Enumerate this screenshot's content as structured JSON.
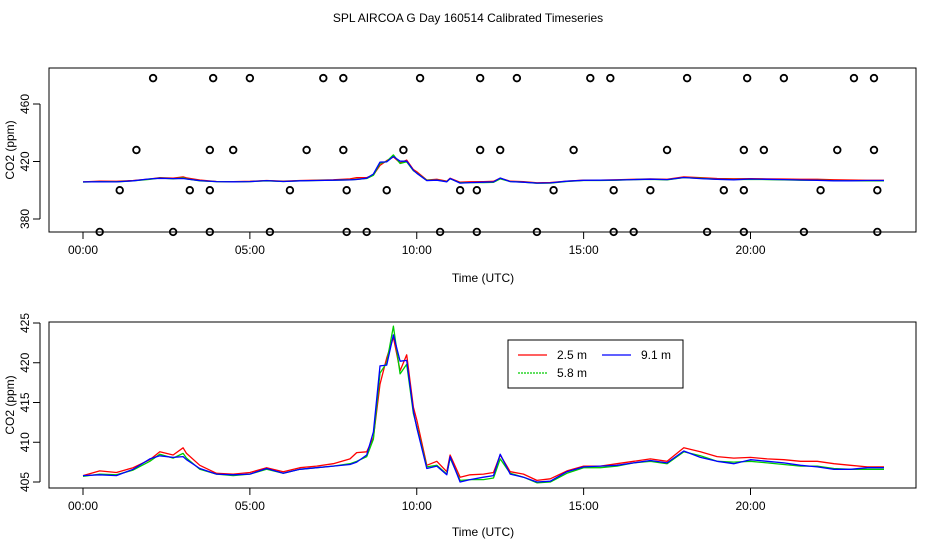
{
  "title": "SPL AIRCOA G  Day 160514  Calibrated Timeseries",
  "chart_data": [
    {
      "type": "scatter+line",
      "xlabel": "Time (UTC)",
      "ylabel": "CO2 (ppm)",
      "xlim": [
        0,
        24
      ],
      "ylim": [
        365,
        482
      ],
      "x_ticks": [
        0,
        5,
        10,
        15,
        20
      ],
      "x_tick_labels": [
        "00:00",
        "05:00",
        "10:00",
        "15:00",
        "20:00"
      ],
      "y_ticks": [
        380,
        420,
        460
      ],
      "y_tick_labels": [
        "380",
        "420",
        "460"
      ],
      "markers": {
        "level_478": [
          2.1,
          3.9,
          5.0,
          7.2,
          7.8,
          10.1,
          11.9,
          13.0,
          15.2,
          15.8,
          18.1,
          19.9,
          21.0,
          23.1,
          23.7
        ],
        "level_428": [
          1.6,
          3.8,
          4.5,
          6.7,
          7.8,
          9.6,
          11.9,
          12.5,
          14.7,
          17.5,
          19.8,
          20.4,
          22.6,
          23.7
        ],
        "level_400": [
          1.1,
          3.2,
          3.8,
          6.2,
          7.9,
          9.1,
          11.3,
          11.8,
          14.1,
          15.9,
          17.0,
          19.2,
          19.8,
          22.1,
          23.8
        ],
        "level_371": [
          0.5,
          2.7,
          3.8,
          5.6,
          7.9,
          8.5,
          10.7,
          11.8,
          13.6,
          15.9,
          16.5,
          18.7,
          19.8,
          21.6,
          23.8
        ]
      },
      "series": [
        {
          "name": "2.5 m",
          "color": "#ff0000"
        },
        {
          "name": "5.8 m",
          "color": "#00cc00"
        },
        {
          "name": "9.1 m",
          "color": "#0000ff"
        }
      ]
    },
    {
      "type": "line",
      "xlabel": "Time (UTC)",
      "ylabel": "CO2 (ppm)",
      "xlim": [
        0,
        24
      ],
      "ylim": [
        404.3,
        425
      ],
      "x_ticks": [
        0,
        5,
        10,
        15,
        20
      ],
      "x_tick_labels": [
        "00:00",
        "05:00",
        "10:00",
        "15:00",
        "20:00"
      ],
      "y_ticks": [
        405,
        410,
        415,
        420,
        425
      ],
      "y_tick_labels": [
        "405",
        "410",
        "415",
        "420",
        "425"
      ],
      "legend_position": "top-center",
      "series": [
        {
          "name": "2.5 m",
          "color": "#ff0000",
          "x": [
            0.0,
            0.5,
            1.0,
            1.5,
            2.0,
            2.3,
            2.7,
            3.0,
            3.1,
            3.5,
            4.0,
            4.5,
            5.0,
            5.5,
            6.0,
            6.5,
            7.0,
            7.5,
            8.0,
            8.2,
            8.5,
            8.7,
            8.9,
            9.1,
            9.3,
            9.5,
            9.7,
            9.9,
            10.0,
            10.3,
            10.6,
            10.9,
            11.0,
            11.3,
            11.6,
            12.0,
            12.3,
            12.5,
            12.8,
            13.2,
            13.6,
            14.0,
            14.5,
            15.0,
            15.5,
            16.0,
            16.5,
            17.0,
            17.5,
            18.0,
            18.5,
            19.0,
            19.5,
            20.0,
            20.5,
            21.0,
            21.5,
            22.0,
            22.5,
            23.0,
            23.5,
            24.0
          ],
          "values": [
            405.8,
            406.4,
            406.2,
            406.8,
            407.8,
            408.8,
            408.4,
            409.3,
            408.6,
            407.1,
            406.1,
            406.0,
            406.2,
            406.8,
            406.3,
            406.8,
            407.0,
            407.3,
            407.9,
            408.7,
            408.8,
            410.6,
            417.3,
            420.6,
            423.2,
            419.0,
            421.0,
            414.4,
            412.8,
            407.1,
            407.6,
            406.3,
            408.4,
            405.6,
            405.9,
            406.0,
            406.2,
            408.4,
            406.3,
            406.0,
            405.2,
            405.4,
            406.4,
            407.0,
            407.0,
            407.3,
            407.6,
            407.9,
            407.6,
            409.3,
            408.8,
            408.2,
            408.0,
            408.1,
            407.9,
            407.8,
            407.6,
            407.6,
            407.3,
            407.1,
            406.9,
            406.9
          ]
        },
        {
          "name": "5.8 m",
          "color": "#00cc00",
          "x": [
            0.0,
            0.5,
            1.0,
            1.5,
            2.0,
            2.3,
            2.7,
            3.0,
            3.1,
            3.5,
            4.0,
            4.5,
            5.0,
            5.5,
            6.0,
            6.5,
            7.0,
            7.5,
            8.0,
            8.2,
            8.5,
            8.7,
            8.9,
            9.1,
            9.3,
            9.5,
            9.7,
            9.9,
            10.0,
            10.3,
            10.6,
            10.9,
            11.0,
            11.3,
            11.6,
            12.0,
            12.3,
            12.5,
            12.8,
            13.2,
            13.6,
            14.0,
            14.5,
            15.0,
            15.5,
            16.0,
            16.5,
            17.0,
            17.5,
            18.0,
            18.5,
            19.0,
            19.5,
            20.0,
            20.5,
            21.0,
            21.5,
            22.0,
            22.5,
            23.0,
            23.5,
            24.0
          ],
          "values": [
            405.7,
            406.0,
            405.9,
            406.5,
            407.6,
            408.5,
            408.0,
            408.6,
            408.0,
            406.6,
            406.0,
            405.8,
            406.0,
            406.6,
            406.1,
            406.6,
            406.8,
            407.0,
            407.3,
            407.6,
            408.2,
            410.4,
            418.7,
            420.0,
            424.6,
            418.6,
            419.8,
            413.6,
            412.0,
            406.9,
            407.1,
            406.0,
            408.0,
            405.2,
            405.3,
            405.3,
            405.5,
            407.9,
            406.1,
            405.6,
            404.9,
            405.0,
            406.1,
            406.8,
            406.8,
            407.0,
            407.4,
            407.6,
            407.3,
            408.8,
            408.3,
            407.6,
            407.5,
            407.6,
            407.4,
            407.2,
            407.0,
            407.0,
            406.7,
            406.6,
            406.6,
            406.6
          ]
        },
        {
          "name": "9.1 m",
          "color": "#0000ff",
          "x": [
            0.0,
            0.5,
            1.0,
            1.5,
            2.0,
            2.3,
            2.7,
            3.0,
            3.1,
            3.5,
            4.0,
            4.5,
            5.0,
            5.5,
            6.0,
            6.5,
            7.0,
            7.5,
            8.0,
            8.2,
            8.5,
            8.7,
            8.9,
            9.1,
            9.3,
            9.5,
            9.7,
            9.9,
            10.0,
            10.3,
            10.6,
            10.9,
            11.0,
            11.3,
            11.6,
            12.0,
            12.3,
            12.5,
            12.8,
            13.2,
            13.6,
            14.0,
            14.5,
            15.0,
            15.5,
            16.0,
            16.5,
            17.0,
            17.5,
            18.0,
            18.5,
            19.0,
            19.5,
            20.0,
            20.5,
            21.0,
            21.5,
            22.0,
            22.5,
            23.0,
            23.5,
            24.0
          ],
          "values": [
            405.8,
            405.9,
            405.8,
            406.6,
            407.9,
            408.3,
            408.1,
            408.2,
            407.8,
            406.7,
            406.0,
            405.9,
            406.0,
            406.7,
            406.1,
            406.6,
            406.8,
            407.0,
            407.2,
            407.5,
            408.4,
            411.3,
            419.6,
            419.7,
            423.5,
            420.2,
            420.3,
            413.9,
            411.8,
            406.7,
            407.0,
            405.9,
            408.2,
            405.0,
            405.3,
            405.6,
            405.8,
            408.5,
            406.0,
            405.6,
            405.0,
            405.1,
            406.3,
            406.9,
            407.0,
            407.1,
            407.4,
            407.7,
            407.4,
            408.9,
            408.1,
            407.6,
            407.3,
            407.8,
            407.6,
            407.4,
            407.1,
            406.9,
            406.6,
            406.6,
            406.8,
            406.8
          ]
        }
      ]
    }
  ]
}
